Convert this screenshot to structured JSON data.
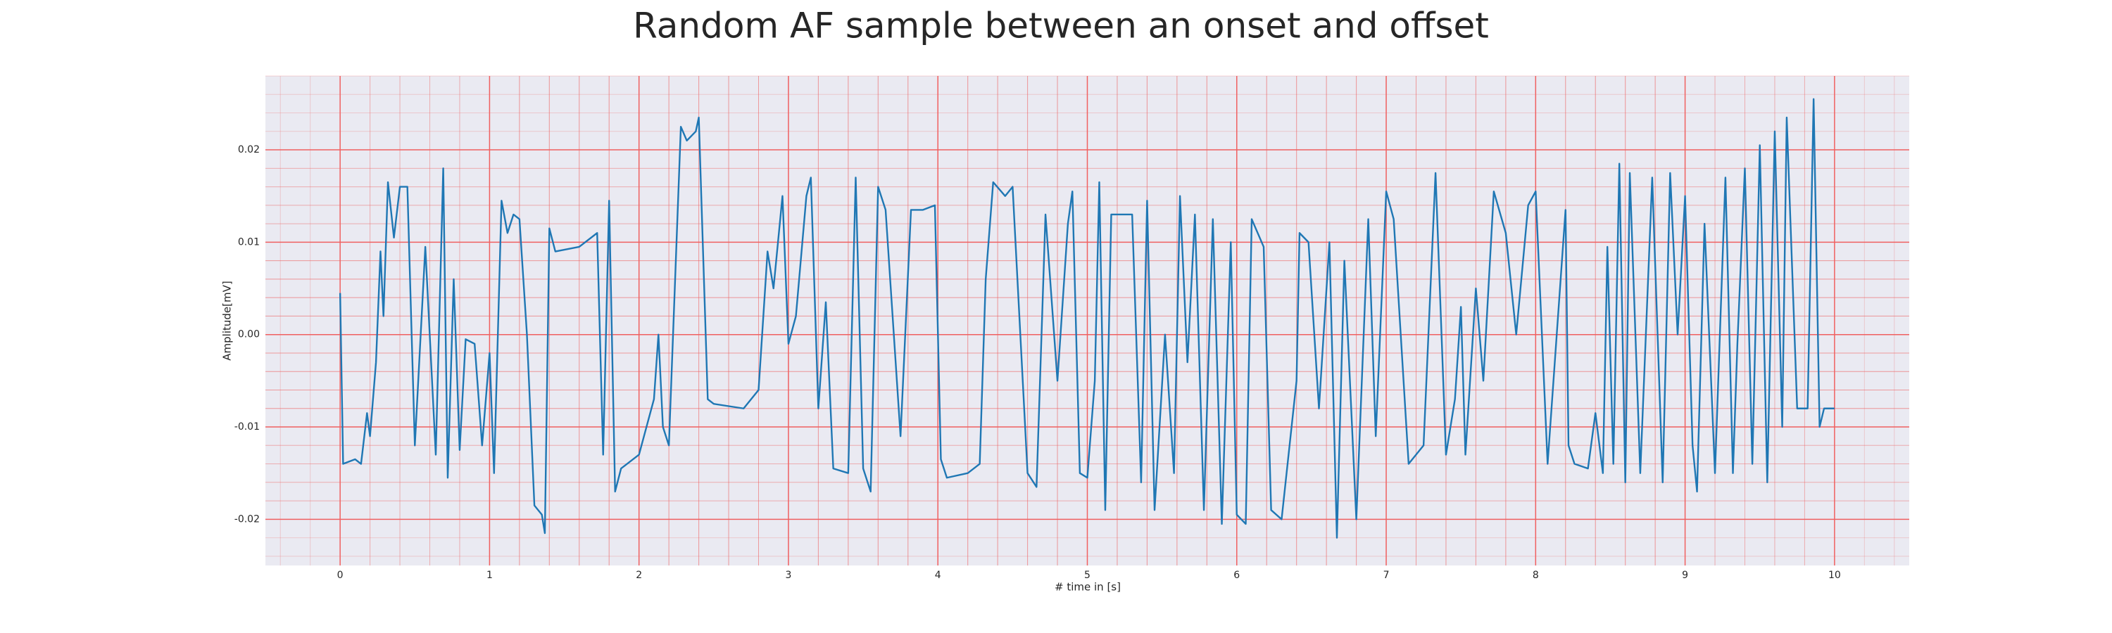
{
  "chart_data": {
    "type": "line",
    "title": "Random AF sample between an onset and offset",
    "xlabel": "# time in [s]",
    "ylabel": "Amplitude[mV]",
    "xlim": [
      -0.5,
      10.5
    ],
    "ylim": [
      -0.025,
      0.028
    ],
    "xticks": [
      0,
      1,
      2,
      3,
      4,
      5,
      6,
      7,
      8,
      9,
      10
    ],
    "yticks": [
      -0.02,
      -0.01,
      {
        "value": 0,
        "label": "0.00"
      },
      0.01,
      0.02
    ],
    "grid": true,
    "grid_color": "#f06060",
    "background": "#eaeaf2",
    "series": [
      {
        "color": "#1f77b4",
        "x": [
          0.0,
          0.02,
          0.1,
          0.14,
          0.18,
          0.2,
          0.24,
          0.27,
          0.29,
          0.32,
          0.36,
          0.4,
          0.45,
          0.5,
          0.57,
          0.64,
          0.69,
          0.72,
          0.76,
          0.8,
          0.84,
          0.9,
          0.95,
          1.0,
          1.03,
          1.08,
          1.12,
          1.16,
          1.2,
          1.25,
          1.3,
          1.35,
          1.37,
          1.4,
          1.44,
          1.6,
          1.72,
          1.76,
          1.8,
          1.84,
          1.88,
          2.0,
          2.1,
          2.13,
          2.16,
          2.2,
          2.28,
          2.32,
          2.38,
          2.4,
          2.46,
          2.5,
          2.7,
          2.8,
          2.86,
          2.9,
          2.96,
          3.0,
          3.05,
          3.12,
          3.15,
          3.2,
          3.25,
          3.3,
          3.4,
          3.45,
          3.5,
          3.55,
          3.6,
          3.65,
          3.75,
          3.82,
          3.9,
          3.98,
          4.02,
          4.06,
          4.2,
          4.28,
          4.32,
          4.37,
          4.45,
          4.5,
          4.6,
          4.66,
          4.72,
          4.8,
          4.87,
          4.9,
          4.95,
          5.0,
          5.05,
          5.08,
          5.12,
          5.16,
          5.3,
          5.36,
          5.4,
          5.45,
          5.52,
          5.58,
          5.62,
          5.67,
          5.72,
          5.78,
          5.84,
          5.9,
          5.96,
          6.0,
          6.06,
          6.1,
          6.18,
          6.23,
          6.3,
          6.4,
          6.42,
          6.48,
          6.55,
          6.62,
          6.67,
          6.72,
          6.8,
          6.88,
          6.93,
          7.0,
          7.05,
          7.15,
          7.25,
          7.33,
          7.4,
          7.46,
          7.5,
          7.53,
          7.6,
          7.65,
          7.72,
          7.8,
          7.87,
          7.95,
          8.0,
          8.08,
          8.2,
          8.22,
          8.26,
          8.35,
          8.4,
          8.45,
          8.48,
          8.52,
          8.56,
          8.6,
          8.63,
          8.7,
          8.78,
          8.85,
          8.9,
          8.95,
          9.0,
          9.05,
          9.08,
          9.13,
          9.2,
          9.27,
          9.32,
          9.35,
          9.4,
          9.45,
          9.5,
          9.55,
          9.6,
          9.65,
          9.68,
          9.75,
          9.82,
          9.86,
          9.9,
          9.93,
          10.0
        ],
        "values": [
          0.0045,
          -0.014,
          -0.0135,
          -0.014,
          -0.0085,
          -0.011,
          -0.003,
          0.009,
          0.002,
          0.0165,
          0.0105,
          0.016,
          0.016,
          -0.012,
          0.0095,
          -0.013,
          0.018,
          -0.0155,
          0.006,
          -0.0125,
          -0.0005,
          -0.001,
          -0.012,
          -0.002,
          -0.015,
          0.0145,
          0.011,
          0.013,
          0.0125,
          0.0,
          -0.0185,
          -0.0195,
          -0.0215,
          0.0115,
          0.009,
          0.0095,
          0.011,
          -0.013,
          0.0145,
          -0.017,
          -0.0145,
          -0.013,
          -0.007,
          0.0,
          -0.01,
          -0.012,
          0.0225,
          0.021,
          0.022,
          0.0235,
          -0.007,
          -0.0075,
          -0.008,
          -0.006,
          0.009,
          0.005,
          0.015,
          -0.001,
          0.002,
          0.015,
          0.017,
          -0.008,
          0.0035,
          -0.0145,
          -0.015,
          0.017,
          -0.0145,
          -0.017,
          0.016,
          0.0135,
          -0.011,
          0.0135,
          0.0135,
          0.014,
          -0.0135,
          -0.0155,
          -0.015,
          -0.014,
          0.006,
          0.0165,
          0.015,
          0.016,
          -0.015,
          -0.0165,
          0.013,
          -0.005,
          0.012,
          0.0155,
          -0.015,
          -0.0155,
          -0.005,
          0.0165,
          -0.019,
          0.013,
          0.013,
          -0.016,
          0.0145,
          -0.019,
          0.0,
          -0.015,
          0.015,
          -0.003,
          0.013,
          -0.019,
          0.0125,
          -0.0205,
          0.01,
          -0.0195,
          -0.0205,
          0.0125,
          0.0095,
          -0.019,
          -0.02,
          -0.005,
          0.011,
          0.01,
          -0.008,
          0.01,
          -0.022,
          0.008,
          -0.02,
          0.0125,
          -0.011,
          0.0155,
          0.0125,
          -0.014,
          -0.012,
          0.0175,
          -0.013,
          -0.007,
          0.003,
          -0.013,
          0.005,
          -0.005,
          0.0155,
          0.011,
          0.0,
          0.014,
          0.0155,
          -0.014,
          0.0135,
          -0.012,
          -0.014,
          -0.0145,
          -0.0085,
          -0.015,
          0.0095,
          -0.014,
          0.0185,
          -0.016,
          0.0175,
          -0.015,
          0.017,
          -0.016,
          0.0175,
          0.0,
          0.015,
          -0.012,
          -0.017,
          0.012,
          -0.015,
          0.017,
          -0.015,
          -0.001,
          0.018,
          -0.014,
          0.0205,
          -0.016,
          0.022,
          -0.01,
          0.0235,
          -0.008,
          -0.008,
          0.0255,
          -0.01,
          -0.008,
          -0.008
        ]
      }
    ]
  }
}
